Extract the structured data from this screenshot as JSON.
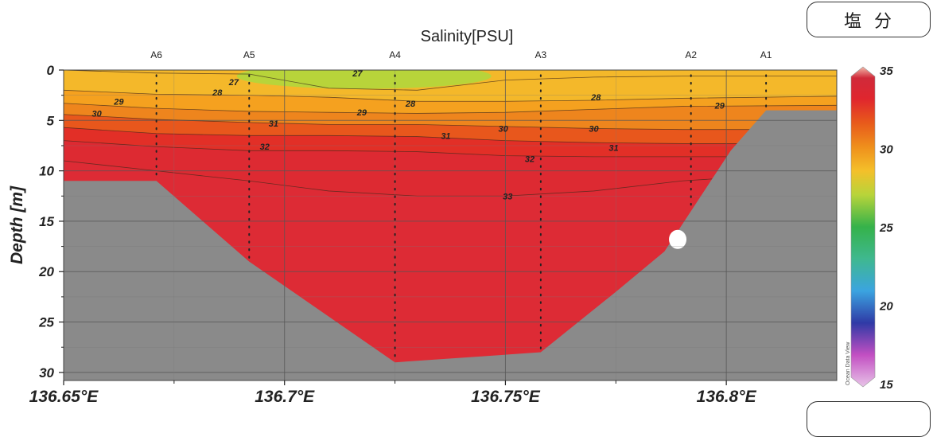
{
  "section_badge": "塩分",
  "chart_data": {
    "type": "heatmap",
    "title": "Salinity[PSU]",
    "xlabel": "",
    "ylabel": "Depth [m]",
    "xlim": [
      136.65,
      136.825
    ],
    "ylim": [
      30.8,
      0
    ],
    "x_ticks": [
      {
        "value": 136.65,
        "label": "136.65°E"
      },
      {
        "value": 136.7,
        "label": "136.7°E"
      },
      {
        "value": 136.75,
        "label": "136.75°E"
      },
      {
        "value": 136.8,
        "label": "136.8°E"
      }
    ],
    "y_ticks": [
      0,
      5,
      10,
      15,
      20,
      25,
      30
    ],
    "grid": true,
    "stations": [
      {
        "name": "A6",
        "lon": 136.671,
        "max_depth": 11
      },
      {
        "name": "A5",
        "lon": 136.692,
        "max_depth": 19
      },
      {
        "name": "A4",
        "lon": 136.725,
        "max_depth": 29
      },
      {
        "name": "A3",
        "lon": 136.758,
        "max_depth": 28
      },
      {
        "name": "A2",
        "lon": 136.792,
        "max_depth": 14
      },
      {
        "name": "A1",
        "lon": 136.809,
        "max_depth": 4
      }
    ],
    "seafloor_profile": [
      {
        "lon": 136.65,
        "depth": 11
      },
      {
        "lon": 136.671,
        "depth": 11
      },
      {
        "lon": 136.692,
        "depth": 19
      },
      {
        "lon": 136.725,
        "depth": 29
      },
      {
        "lon": 136.758,
        "depth": 28
      },
      {
        "lon": 136.775,
        "depth": 22
      },
      {
        "lon": 136.786,
        "depth": 18
      },
      {
        "lon": 136.792,
        "depth": 14
      },
      {
        "lon": 136.801,
        "depth": 8
      },
      {
        "lon": 136.809,
        "depth": 4
      },
      {
        "lon": 136.825,
        "depth": 4
      }
    ],
    "salinity_layers": [
      {
        "label": "27",
        "color": "#b3d13a",
        "depths": [
          0,
          0.3,
          0.4,
          1.8,
          2.0,
          1.0,
          0.7,
          0.6,
          0.6
        ]
      },
      {
        "label": "28",
        "color": "#f4c02a",
        "depths": [
          2.0,
          2.4,
          2.5,
          2.7,
          3.1,
          3.1,
          3.0,
          2.8,
          2.6
        ]
      },
      {
        "label": "29",
        "color": "#f6a81f",
        "depths": [
          3.3,
          3.8,
          4.1,
          4.2,
          4.3,
          4.2,
          3.9,
          3.6,
          3.5
        ]
      },
      {
        "label": "30",
        "color": "#ee8a1c",
        "depths": [
          4.4,
          4.9,
          5.2,
          5.4,
          5.4,
          5.6,
          5.8,
          5.9,
          5.9
        ]
      },
      {
        "label": "31",
        "color": "#e85a1b",
        "depths": [
          5.7,
          6.3,
          6.5,
          6.5,
          6.6,
          7.0,
          7.2,
          7.3,
          7.3
        ]
      },
      {
        "label": "32",
        "color": "#e22f27",
        "depths": [
          7.0,
          7.6,
          8.0,
          8.0,
          8.1,
          8.5,
          8.6,
          8.6,
          8.6
        ]
      },
      {
        "label": "33",
        "color": "#dc2a33",
        "depths": [
          9.0,
          10.0,
          11.0,
          12.0,
          12.5,
          12.5,
          12.0,
          11.0,
          10.0
        ]
      }
    ],
    "layer_lons": [
      136.65,
      136.671,
      136.692,
      136.71,
      136.73,
      136.75,
      136.77,
      136.79,
      136.825
    ],
    "base_color": "#dd2b35",
    "contour_labels": [
      {
        "text": "27",
        "lon": 136.6885,
        "depth": 1.2
      },
      {
        "text": "27",
        "lon": 136.7165,
        "depth": 0.3
      },
      {
        "text": "28",
        "lon": 136.6848,
        "depth": 2.2
      },
      {
        "text": "28",
        "lon": 136.7285,
        "depth": 3.3
      },
      {
        "text": "28",
        "lon": 136.7705,
        "depth": 2.7
      },
      {
        "text": "29",
        "lon": 136.6625,
        "depth": 3.1
      },
      {
        "text": "29",
        "lon": 136.7175,
        "depth": 4.2
      },
      {
        "text": "29",
        "lon": 136.7985,
        "depth": 3.5
      },
      {
        "text": "30",
        "lon": 136.6575,
        "depth": 4.3
      },
      {
        "text": "30",
        "lon": 136.7495,
        "depth": 5.8
      },
      {
        "text": "30",
        "lon": 136.77,
        "depth": 5.8
      },
      {
        "text": "31",
        "lon": 136.6975,
        "depth": 5.3
      },
      {
        "text": "31",
        "lon": 136.7365,
        "depth": 6.5
      },
      {
        "text": "31",
        "lon": 136.7745,
        "depth": 7.7
      },
      {
        "text": "32",
        "lon": 136.6955,
        "depth": 7.6
      },
      {
        "text": "32",
        "lon": 136.7555,
        "depth": 8.8
      },
      {
        "text": "33",
        "lon": 136.7505,
        "depth": 12.5
      }
    ],
    "colorbar": {
      "min": 15,
      "max": 35,
      "ticks": [
        15,
        20,
        25,
        30,
        35
      ],
      "stops": [
        {
          "value": 15,
          "color": "#e8c4e8"
        },
        {
          "value": 17,
          "color": "#c24fc2"
        },
        {
          "value": 19,
          "color": "#2f3aa6"
        },
        {
          "value": 21,
          "color": "#3ba4e0"
        },
        {
          "value": 23,
          "color": "#3fb88f"
        },
        {
          "value": 25,
          "color": "#35b24a"
        },
        {
          "value": 27,
          "color": "#b8d43a"
        },
        {
          "value": 28.5,
          "color": "#f4c02a"
        },
        {
          "value": 30,
          "color": "#ef8f1c"
        },
        {
          "value": 31.5,
          "color": "#e85a1b"
        },
        {
          "value": 33,
          "color": "#e0262e"
        },
        {
          "value": 34.3,
          "color": "#d02a3a"
        },
        {
          "value": 35,
          "color": "#f2b8a8"
        }
      ]
    },
    "watermark": "Ocean Data View",
    "colors": {
      "seafloor": "#8a8a8a",
      "grid": "#555555",
      "station_line": "#222222"
    }
  }
}
